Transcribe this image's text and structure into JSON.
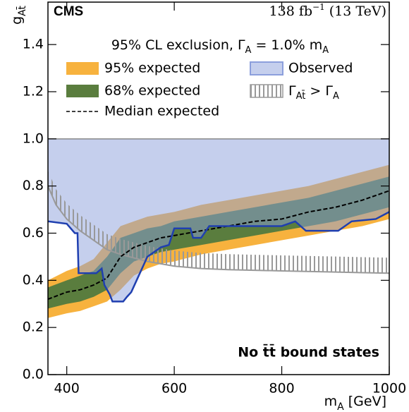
{
  "chart_data": {
    "type": "line",
    "experiment": "CMS",
    "lumi": [
      "138 fb",
      "−1",
      " (13 TeV)"
    ],
    "xlabel": [
      "m",
      "A",
      " [GeV]"
    ],
    "ylabel": [
      "g",
      "At̄"
    ],
    "legend_title": [
      "95% CL exclusion, Γ",
      "A",
      " =  1.0% m",
      "A"
    ],
    "annotation": "No t̄t̄ bound states",
    "xlim": [
      365,
      1000
    ],
    "ylim": [
      0,
      1.58
    ],
    "xticks": [
      400,
      600,
      800,
      1000
    ],
    "yticks": [
      {
        "value": 0,
        "label": "0.0"
      },
      {
        "value": 0.2,
        "label": "0.2"
      },
      {
        "value": 0.4,
        "label": "0.4"
      },
      {
        "value": 0.6,
        "label": "0.6"
      },
      {
        "value": 0.8,
        "label": "0.8"
      },
      {
        "value": 1,
        "label": "1.0"
      },
      {
        "value": 1.2,
        "label": "1.2"
      },
      {
        "value": 1.4,
        "label": "1.4"
      }
    ],
    "ceiling": 1.0,
    "x": [
      365,
      400,
      425,
      450,
      475,
      500,
      525,
      550,
      575,
      600,
      650,
      700,
      750,
      800,
      850,
      900,
      950,
      1000
    ],
    "series": [
      {
        "name": "95% expected",
        "color": "#f7b23e",
        "lower": [
          0.24,
          0.26,
          0.27,
          0.29,
          0.31,
          0.36,
          0.42,
          0.45,
          0.47,
          0.48,
          0.51,
          0.53,
          0.55,
          0.57,
          0.59,
          0.61,
          0.63,
          0.66
        ],
        "upper": [
          0.4,
          0.44,
          0.46,
          0.49,
          0.56,
          0.63,
          0.65,
          0.67,
          0.68,
          0.69,
          0.72,
          0.74,
          0.76,
          0.78,
          0.8,
          0.83,
          0.86,
          0.89
        ]
      },
      {
        "name": "68% expected",
        "color": "#5a7d3e",
        "lower": [
          0.28,
          0.3,
          0.31,
          0.33,
          0.36,
          0.43,
          0.48,
          0.5,
          0.52,
          0.53,
          0.55,
          0.57,
          0.59,
          0.61,
          0.63,
          0.65,
          0.68,
          0.71
        ],
        "upper": [
          0.37,
          0.4,
          0.42,
          0.44,
          0.5,
          0.58,
          0.6,
          0.62,
          0.63,
          0.65,
          0.67,
          0.69,
          0.71,
          0.73,
          0.75,
          0.78,
          0.81,
          0.84
        ]
      },
      {
        "name": "Median expected",
        "color": "#000000",
        "values": [
          0.32,
          0.35,
          0.36,
          0.38,
          0.41,
          0.5,
          0.54,
          0.56,
          0.58,
          0.59,
          0.61,
          0.63,
          0.65,
          0.66,
          0.69,
          0.71,
          0.74,
          0.78
        ]
      },
      {
        "name": "Observed",
        "color": "#8c9fdc",
        "line_color": "#1f3fb0",
        "x": [
          365,
          400,
          415,
          420,
          422,
          455,
          465,
          470,
          480,
          485,
          505,
          512,
          520,
          530,
          550,
          575,
          590,
          600,
          630,
          635,
          650,
          665,
          800,
          825,
          845,
          905,
          930,
          975,
          1000
        ],
        "values": [
          0.65,
          0.64,
          0.6,
          0.6,
          0.43,
          0.43,
          0.45,
          0.38,
          0.34,
          0.31,
          0.31,
          0.33,
          0.35,
          0.4,
          0.5,
          0.54,
          0.55,
          0.62,
          0.62,
          0.58,
          0.58,
          0.63,
          0.63,
          0.65,
          0.61,
          0.61,
          0.65,
          0.66,
          0.69
        ]
      },
      {
        "name": [
          "Γ",
          "At̄",
          " > Γ",
          "A"
        ],
        "color": "#999999",
        "x": [
          365,
          380,
          400,
          425,
          450,
          475,
          500,
          550,
          600,
          650,
          700,
          800,
          900,
          1000
        ],
        "values": [
          0.8,
          0.72,
          0.66,
          0.61,
          0.57,
          0.53,
          0.51,
          0.48,
          0.46,
          0.45,
          0.445,
          0.44,
          0.435,
          0.43
        ]
      }
    ]
  }
}
